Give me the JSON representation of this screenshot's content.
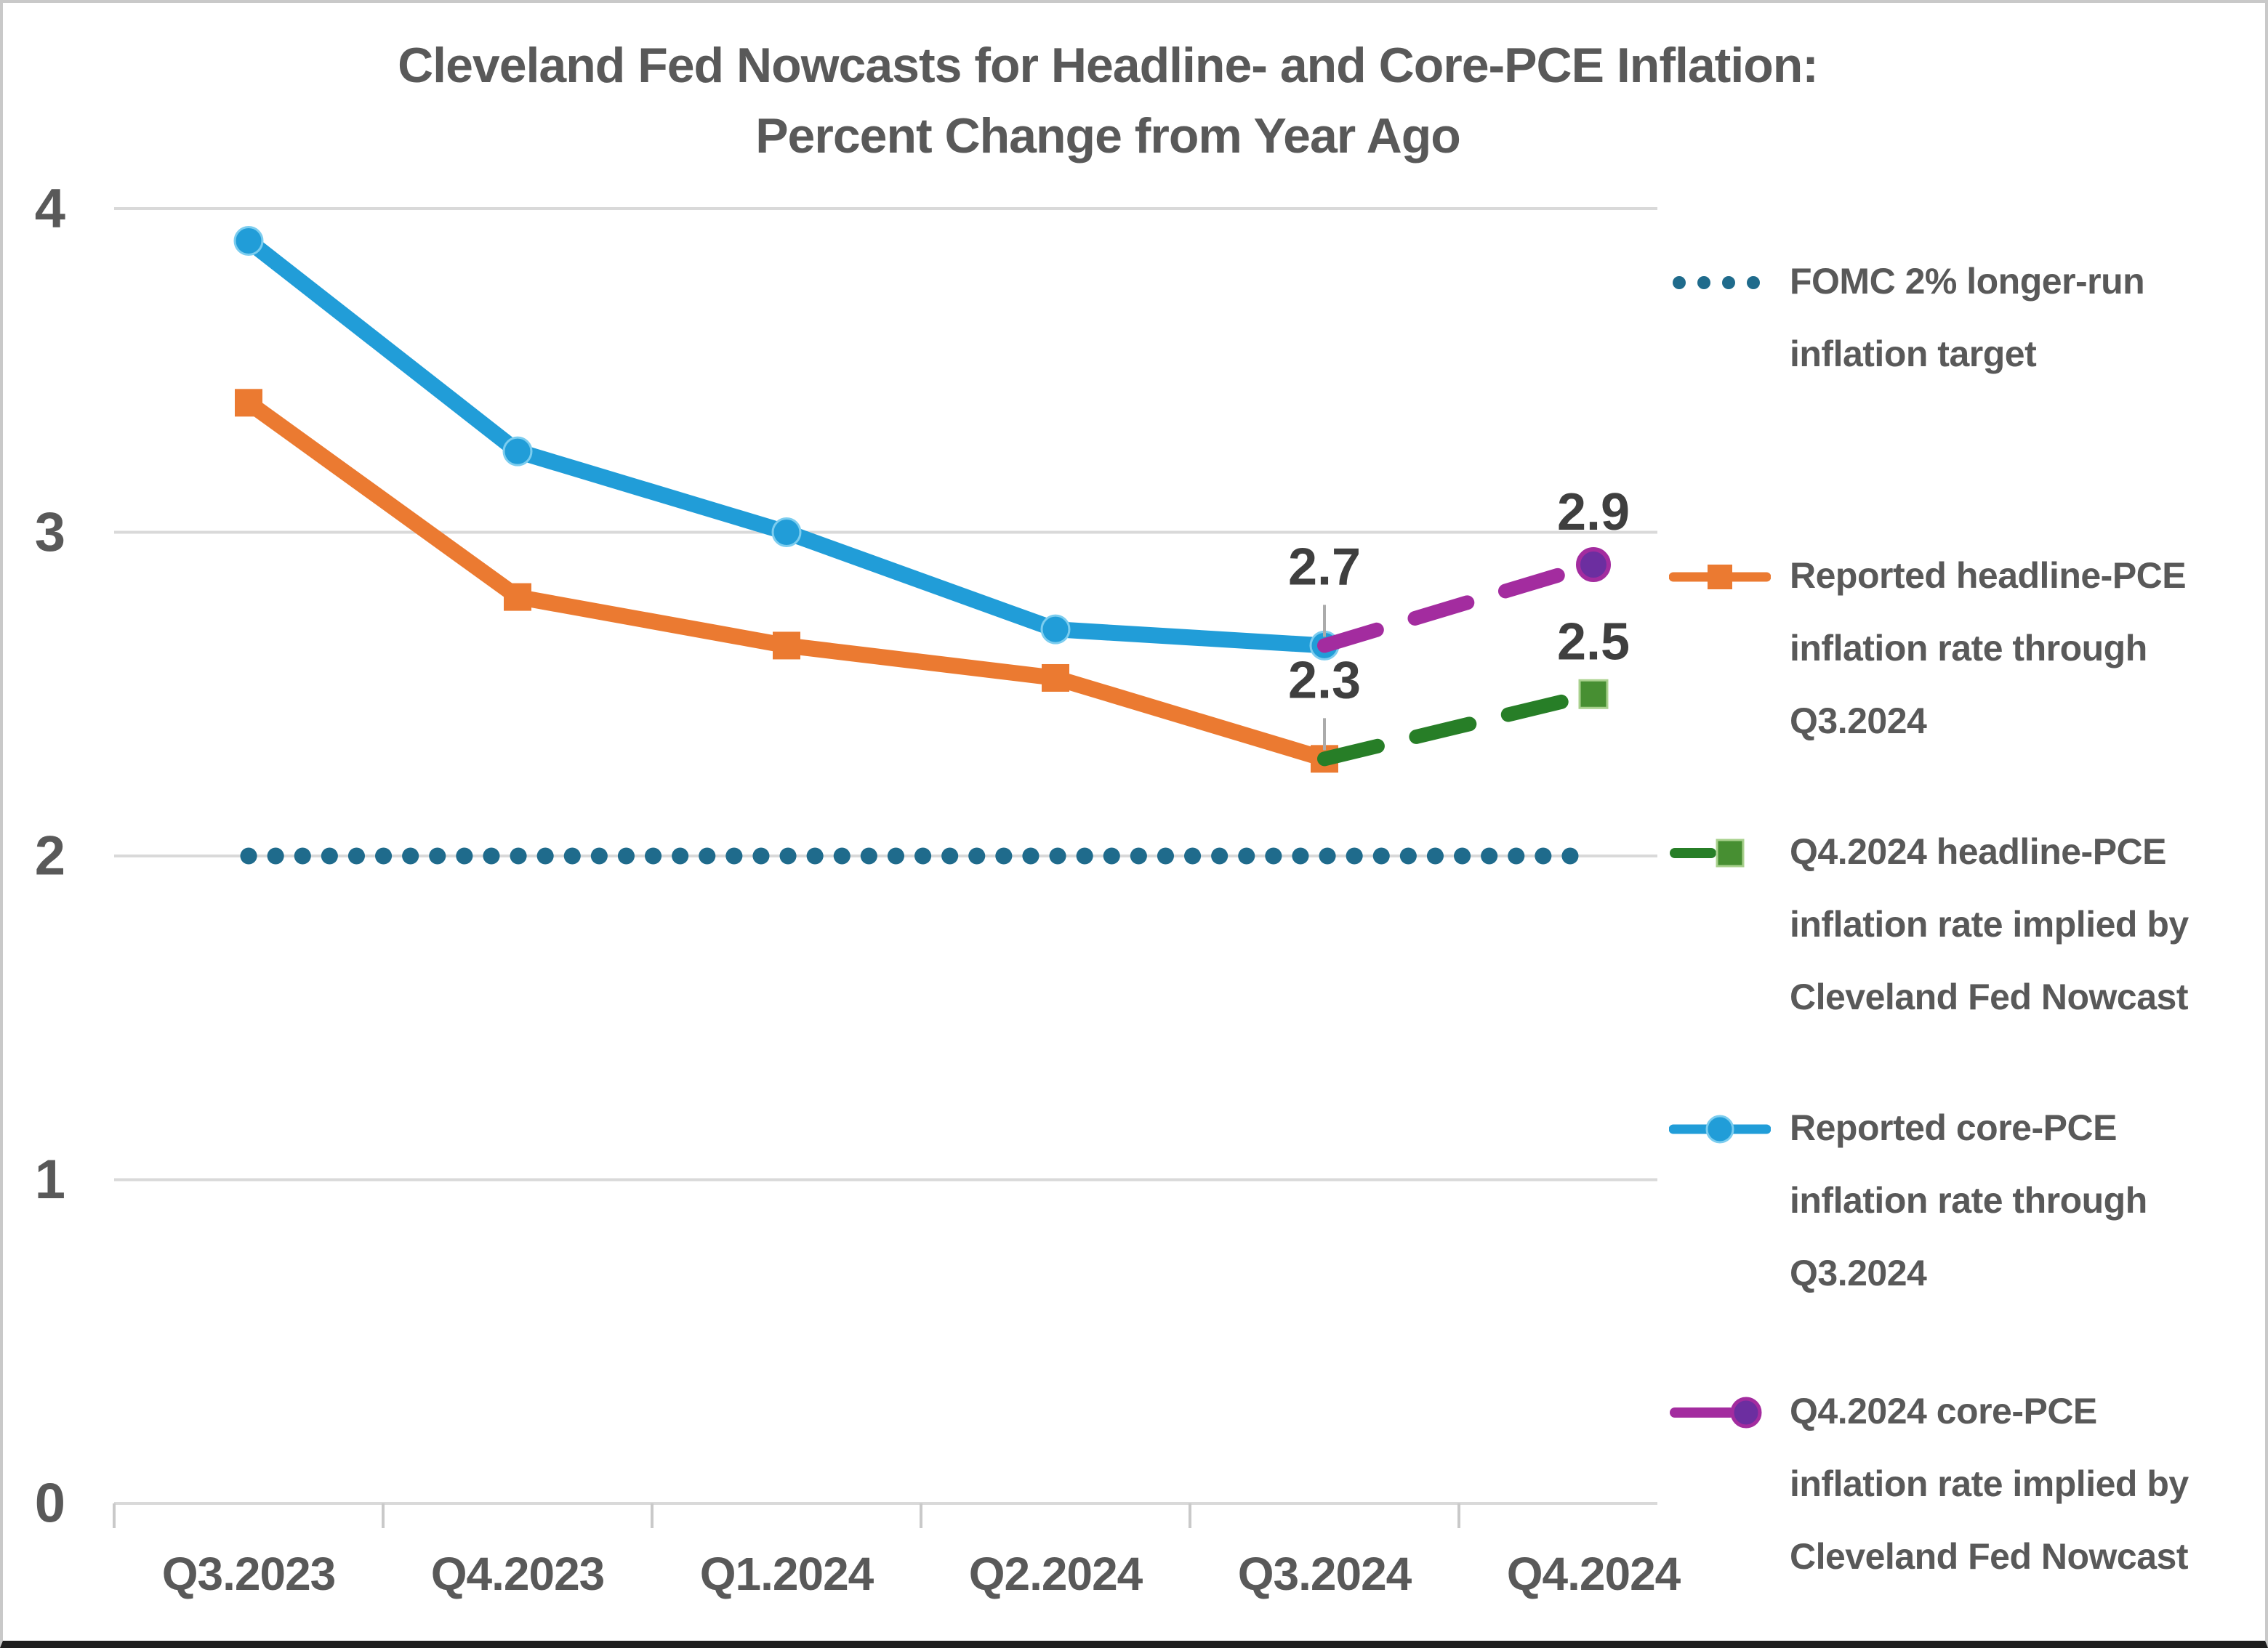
{
  "title": {
    "line1": "Cleveland Fed Nowcasts for Headline- and Core-PCE Inflation:",
    "line2": "Percent Change from Year Ago"
  },
  "colors": {
    "core_blue": "#219DD8",
    "core_blue_ring": "#7CCDEF",
    "headline_orange": "#EB7A31",
    "fomc_teal": "#1F6B8C",
    "nowcast_headline_green": "#277E27",
    "nowcast_headline_green_marker": "#478F32",
    "nowcast_headline_green_ring": "#A9D18E",
    "nowcast_core_magenta": "#A32C9F",
    "nowcast_core_purple_marker": "#6C2EA0",
    "grid_gray": "#D9D9D9",
    "tick_gray": "#C9C9C9",
    "text_gray": "#595959",
    "annotation_dark": "#3F3F3F",
    "leader_gray": "#ABABAB",
    "border_gray": "#C9C9C9",
    "border_bottom_dark": "#1F1F1F",
    "background": "#FFFFFF"
  },
  "chart_data": {
    "type": "line",
    "title": "Cleveland Fed Nowcasts for Headline- and Core-PCE Inflation: Percent Change from Year Ago",
    "categories": [
      "Q3.2023",
      "Q4.2023",
      "Q1.2024",
      "Q2.2024",
      "Q3.2024",
      "Q4.2024"
    ],
    "ylim": [
      0,
      4
    ],
    "yticks": [
      0,
      1,
      2,
      3,
      4
    ],
    "grid": "horizontal",
    "legend_position": "right",
    "series": [
      {
        "name": "FOMC 2% longer-run inflation target",
        "style": "dotted",
        "marker": "none",
        "color_key": "fomc_teal",
        "x": [
          "Q3.2023",
          "Q4.2023",
          "Q1.2024",
          "Q2.2024",
          "Q3.2024",
          "Q4.2024"
        ],
        "values": [
          2.0,
          2.0,
          2.0,
          2.0,
          2.0,
          2.0
        ]
      },
      {
        "name": "Reported headline-PCE inflation rate through Q3.2024",
        "style": "solid",
        "marker": "square",
        "color_key": "headline_orange",
        "x": [
          "Q3.2023",
          "Q4.2023",
          "Q1.2024",
          "Q2.2024",
          "Q3.2024"
        ],
        "values": [
          3.4,
          2.8,
          2.65,
          2.55,
          2.3
        ]
      },
      {
        "name": "Reported core-PCE inflation rate through Q3.2024",
        "style": "solid",
        "marker": "circle",
        "color_key": "core_blue",
        "marker_ring_key": "core_blue_ring",
        "x": [
          "Q3.2023",
          "Q4.2023",
          "Q1.2024",
          "Q2.2024",
          "Q3.2024"
        ],
        "values": [
          3.9,
          3.25,
          3.0,
          2.7,
          2.65
        ]
      },
      {
        "name": "Q4.2024 headline-PCE inflation rate implied by Cleveland Fed Nowcast",
        "style": "dashed",
        "marker": "square",
        "color_key": "nowcast_headline_green",
        "marker_color_key": "nowcast_headline_green_marker",
        "marker_ring_key": "nowcast_headline_green_ring",
        "x": [
          "Q3.2024",
          "Q4.2024"
        ],
        "values": [
          2.3,
          2.5
        ]
      },
      {
        "name": "Q4.2024 core-PCE inflation rate implied by Cleveland Fed Nowcast",
        "style": "dashed",
        "marker": "circle",
        "color_key": "nowcast_core_magenta",
        "marker_color_key": "nowcast_core_purple_marker",
        "marker_ring_key": "nowcast_core_magenta",
        "x": [
          "Q3.2024",
          "Q4.2024"
        ],
        "values": [
          2.65,
          2.9
        ]
      }
    ],
    "annotations": [
      {
        "text": "2.7",
        "category": "Q3.2024",
        "point_value": 2.65,
        "leader": true
      },
      {
        "text": "2.3",
        "category": "Q3.2024",
        "point_value": 2.3,
        "leader": true
      },
      {
        "text": "2.9",
        "category": "Q4.2024",
        "point_value": 2.9,
        "leader": false
      },
      {
        "text": "2.5",
        "category": "Q4.2024",
        "point_value": 2.5,
        "leader": false
      }
    ]
  },
  "legend": {
    "items": [
      {
        "text": "FOMC 2% longer-run\ninflation target",
        "marker": "teal-dotted-line"
      },
      {
        "text": "Reported headline-PCE\ninflation rate through\nQ3.2024",
        "marker": "orange-line-square"
      },
      {
        "text": "Q4.2024 headline-PCE\ninflation rate implied by\nCleveland Fed Nowcast",
        "marker": "green-dash-square"
      },
      {
        "text": "Reported core-PCE\ninflation rate through\nQ3.2024",
        "marker": "blue-line-circle"
      },
      {
        "text": "Q4.2024 core-PCE\ninflation rate implied by\nCleveland Fed Nowcast",
        "marker": "magenta-dash-circle"
      }
    ]
  }
}
